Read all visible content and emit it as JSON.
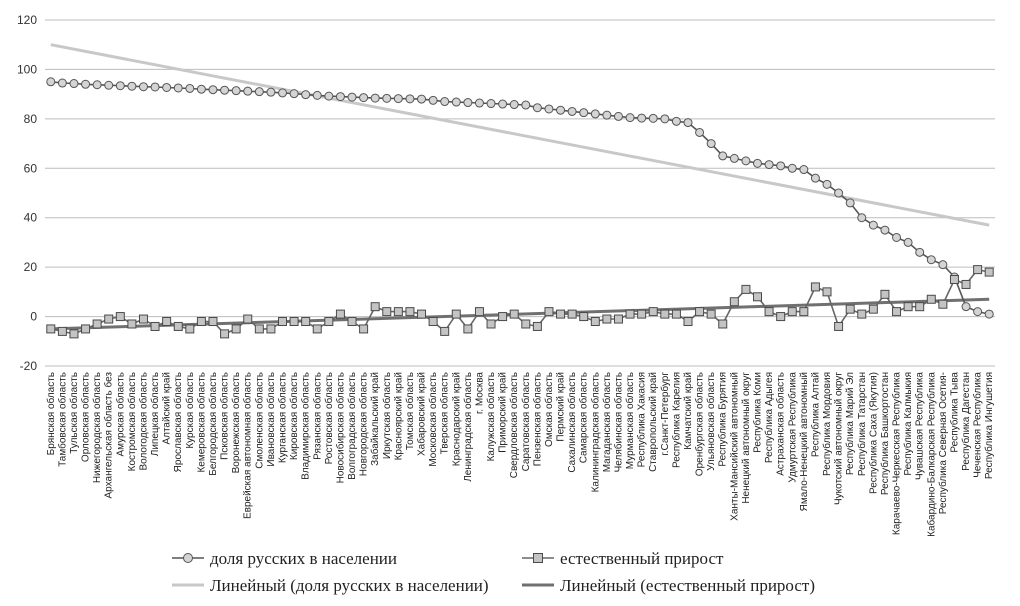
{
  "chart_data": {
    "type": "line",
    "title": "",
    "xlabel": "",
    "ylabel": "",
    "ylim": [
      -20,
      120
    ],
    "yticks": [
      -20,
      0,
      20,
      40,
      60,
      80,
      100,
      120
    ],
    "grid": true,
    "legend_position": "bottom",
    "categories": [
      "Брянская область",
      "Тамбовская область",
      "Тульская область",
      "Орловская область",
      "Нижегородская область",
      "Архангельская область без",
      "Амурская область",
      "Костромская область",
      "Вологодская область",
      "Липецкая область",
      "Алтайский край",
      "Ярославская область",
      "Курская область",
      "Кемеровская область",
      "Белгородская область",
      "Псковская область",
      "Воронежская область",
      "Еврейская автономная область",
      "Смоленская область",
      "Ивановская область",
      "Курганская область",
      "Кировская область",
      "Владимирская область",
      "Рязанская область",
      "Ростовская область",
      "Новосибирская область",
      "Волгоградская область",
      "Новгородская область",
      "Забайкальский край",
      "Иркутская область",
      "Красноярский край",
      "Томская область",
      "Хабаровский край",
      "Московская область",
      "Тверская область",
      "Краснодарский край",
      "Ленинградская область",
      "г. Москва",
      "Калужская область",
      "Приморский край",
      "Свердловская область",
      "Саратовская область",
      "Пензенская область",
      "Омская область",
      "Пермский край",
      "Сахалинская область",
      "Самарская область",
      "Калининградская область",
      "Магаданская область",
      "Челябинская область",
      "Мурманская область",
      "Республика Хакасия",
      "Ставропольский край",
      "г.Санкт-Петербург",
      "Республика Карелия",
      "Камчатский край",
      "Оренбургская область",
      "Ульяновская область",
      "Республика Бурятия",
      "Ханты-Мансийский автономный",
      "Ненецкий автономный округ",
      "Республика Коми",
      "Республика Адыгея",
      "Астраханская область",
      "Удмуртская Республика",
      "Ямало-Ненецкий автономный",
      "Республика Алтай",
      "Республика Мордовия",
      "Чукотский автономный округ",
      "Республика Марий Эл",
      "Республика Татарстан",
      "Республика Саха (Якутия)",
      "Республика Башкортостан",
      "Карачаево-Черкесская Республика",
      "Республика Калмыкия",
      "Чувашская Республика",
      "Кабардино-Балкарская Республика",
      "Республика Северная Осетия-",
      "Республика Тыва",
      "Республика Дагестан",
      "Чеченская Республика",
      "Республика Ингушетия"
    ],
    "series": [
      {
        "name": "доля русских в населении",
        "marker": "circle",
        "color": "#555555",
        "values": [
          95,
          94.5,
          94.3,
          94,
          93.8,
          93.6,
          93.4,
          93.2,
          93,
          92.9,
          92.7,
          92.5,
          92.3,
          92,
          91.8,
          91.6,
          91.4,
          91.2,
          91,
          90.8,
          90.5,
          90.2,
          89.8,
          89.5,
          89.2,
          89,
          88.8,
          88.6,
          88.4,
          88.3,
          88.2,
          88.1,
          88,
          87.5,
          87,
          86.8,
          86.6,
          86.4,
          86.2,
          86,
          85.8,
          85.6,
          84.5,
          84,
          83.5,
          83,
          82.5,
          82,
          81.5,
          81,
          80.5,
          80.3,
          80.2,
          80,
          79,
          78.5,
          74.5,
          70,
          65,
          64,
          63,
          62,
          61.5,
          61,
          60,
          59.5,
          56,
          53.5,
          50,
          46,
          40,
          37,
          35,
          32,
          30,
          26,
          23,
          21,
          16,
          4,
          2,
          1
        ]
      },
      {
        "name": "естественный прирост",
        "marker": "square",
        "color": "#666666",
        "values": [
          -5,
          -6,
          -7,
          -5,
          -3,
          -1,
          0,
          -3,
          -1,
          -4,
          -2,
          -4,
          -5,
          -2,
          -2,
          -7,
          -5,
          -1,
          -5,
          -5,
          -2,
          -2,
          -2,
          -5,
          -2,
          1,
          -2,
          -5,
          4,
          2,
          2,
          2,
          1,
          -2,
          -6,
          1,
          -5,
          2,
          -3,
          0,
          1,
          -3,
          -4,
          2,
          1,
          1,
          0,
          -2,
          -1,
          -1,
          1,
          1,
          2,
          1,
          1,
          -2,
          2,
          1,
          -3,
          6,
          11,
          8,
          2,
          0,
          2,
          2,
          12,
          10,
          -4,
          3,
          1,
          3,
          9,
          2,
          4,
          4,
          7,
          5,
          15,
          13,
          19,
          18
        ]
      }
    ],
    "trendlines": [
      {
        "name": "Линейный (доля русских в населении)",
        "color": "#c8c8c8",
        "start": 110,
        "end": 37
      },
      {
        "name": "Линейный (естественный прирост)",
        "color": "#707070",
        "start": -5,
        "end": 7
      }
    ]
  }
}
